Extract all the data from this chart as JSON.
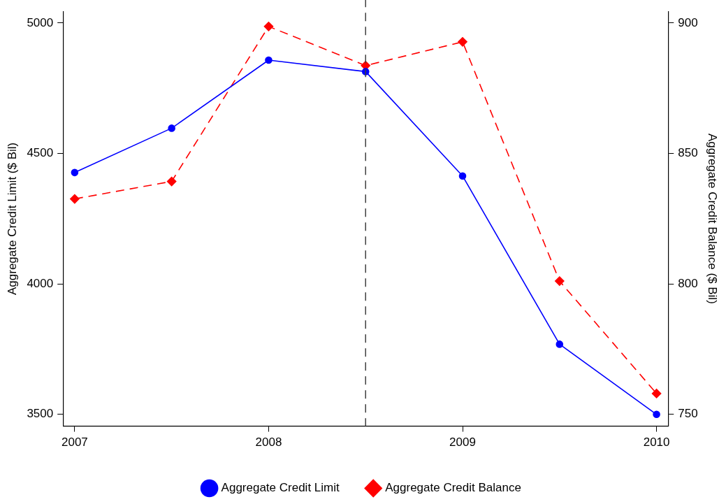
{
  "chart_data": {
    "type": "line",
    "ylabel": "Aggregate Credit Limit ($ Bil)",
    "y2label": "Aggregate Credit Balance ($ Bil)",
    "x": [
      2007,
      2007.5,
      2008,
      2008.5,
      2009,
      2009.5,
      2010
    ],
    "series": [
      {
        "name": "Aggregate Credit Limit",
        "color": "#0000ff",
        "marker": "circle",
        "line_style": "solid",
        "values": [
          4427,
          4597,
          4858,
          4814,
          4414,
          3769,
          3500
        ]
      },
      {
        "name": "Aggregate Credit Balance",
        "color": "#ff0000",
        "marker": "diamond",
        "line_style": "dashed",
        "axis": "y2",
        "values": [
          832.6,
          839.3,
          898.7,
          883.7,
          892.8,
          801.1,
          758
        ]
      }
    ],
    "xlim": [
      2006.94,
      2010.06
    ],
    "xticks": [
      2007,
      2008,
      2009,
      2010
    ],
    "ylim": [
      3455,
      5045
    ],
    "yticks": [
      3500,
      4000,
      4500,
      5000
    ],
    "y2lim": [
      745.5,
      904.5
    ],
    "y2ticks": [
      750,
      800,
      850,
      900
    ],
    "ref_lines": [
      {
        "axis": "x",
        "value": 2008.5,
        "color": "#404040",
        "line_style": "dashed"
      }
    ],
    "grid": false,
    "legend": "bottom"
  }
}
